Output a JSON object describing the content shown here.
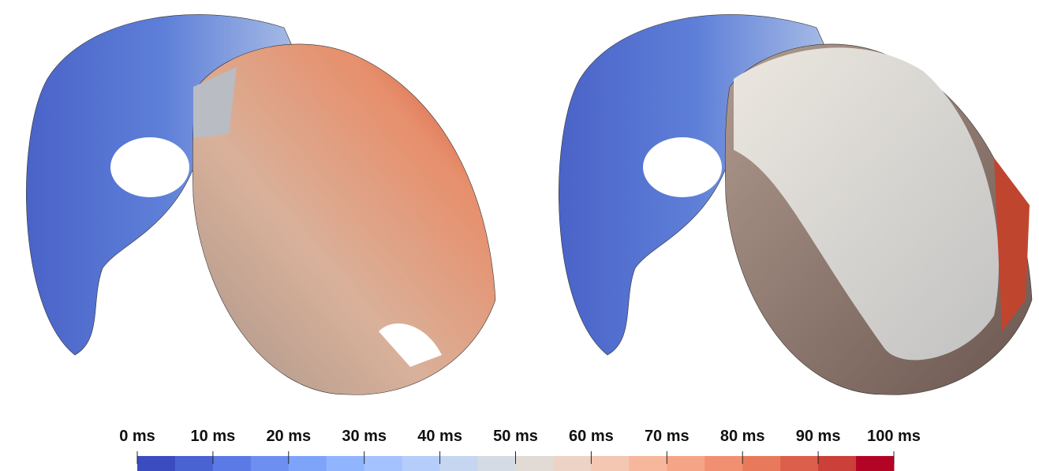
{
  "colorbar": {
    "range": [
      0,
      100
    ],
    "ticks": [
      {
        "value": 0,
        "label": "0 ms"
      },
      {
        "value": 10,
        "label": "10 ms"
      },
      {
        "value": 20,
        "label": "20 ms"
      },
      {
        "value": 30,
        "label": "30 ms"
      },
      {
        "value": 40,
        "label": "40 ms"
      },
      {
        "value": 50,
        "label": "50 ms"
      },
      {
        "value": 60,
        "label": "60 ms"
      },
      {
        "value": 70,
        "label": "70 ms"
      },
      {
        "value": 80,
        "label": "80 ms"
      },
      {
        "value": 90,
        "label": "90 ms"
      },
      {
        "value": 100,
        "label": "100 ms"
      }
    ],
    "colors": [
      "#3b4cc0",
      "#4a63d3",
      "#5b7ae5",
      "#6c8ff1",
      "#7ea4fa",
      "#90b5fe",
      "#a3c2fe",
      "#b5cdfa",
      "#c6d6f1",
      "#d5dbe5",
      "#e2dad5",
      "#ecd3c5",
      "#f3c7b1",
      "#f6b79c",
      "#f5a586",
      "#f19070",
      "#e87a5b",
      "#dc5f4b",
      "#cc403a",
      "#b40426"
    ]
  }
}
